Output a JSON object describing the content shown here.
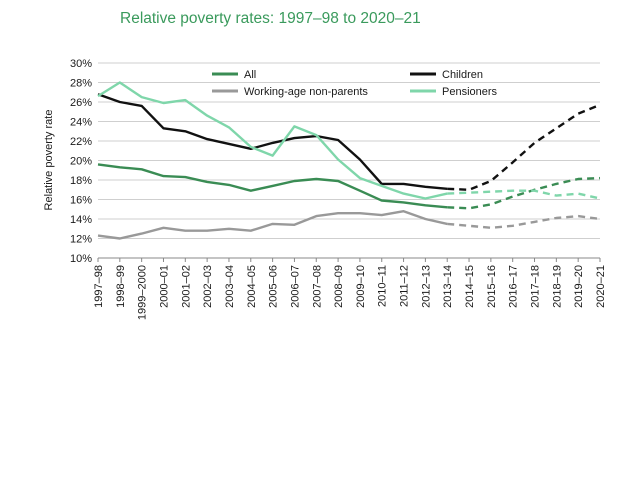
{
  "chart_data": {
    "type": "line",
    "title": "Relative poverty rates: 1997–98 to 2020–21",
    "xlabel": "",
    "ylabel": "Relative poverty rate",
    "ylim": [
      10,
      30
    ],
    "ytick_step": 2,
    "y_unit": "%",
    "grid": true,
    "legend_position": "top",
    "categories": [
      "1997–98",
      "1998–99",
      "1999–2000",
      "2000–01",
      "2001–02",
      "2002–03",
      "2003–04",
      "2004–05",
      "2005–06",
      "2006–07",
      "2007–08",
      "2008–09",
      "2009–10",
      "2010–11",
      "2011–12",
      "2012–13",
      "2013–14",
      "2014–15",
      "2015–16",
      "2016–17",
      "2017–18",
      "2018–19",
      "2019–20",
      "2020–21"
    ],
    "series": [
      {
        "name": "All",
        "color": "#3a8c54",
        "values": [
          19.6,
          19.3,
          19.1,
          18.4,
          18.3,
          17.8,
          17.5,
          16.9,
          17.4,
          17.9,
          18.1,
          17.9,
          16.9,
          15.9,
          15.7,
          15.4,
          15.2,
          15.1,
          15.5,
          16.3,
          17.0,
          17.6,
          18.1,
          18.2
        ],
        "projection_from_index": 16
      },
      {
        "name": "Children",
        "color": "#111111",
        "values": [
          26.8,
          26.0,
          25.6,
          23.3,
          23.0,
          22.2,
          21.7,
          21.2,
          21.8,
          22.3,
          22.5,
          22.1,
          20.1,
          17.6,
          17.6,
          17.3,
          17.1,
          17.0,
          17.9,
          19.8,
          21.8,
          23.3,
          24.8,
          25.7
        ],
        "projection_from_index": 16
      },
      {
        "name": "Working-age non-parents",
        "color": "#999999",
        "values": [
          12.3,
          12.0,
          12.5,
          13.1,
          12.8,
          12.8,
          13.0,
          12.8,
          13.5,
          13.4,
          14.3,
          14.6,
          14.6,
          14.4,
          14.8,
          14.0,
          13.5,
          13.3,
          13.1,
          13.3,
          13.7,
          14.1,
          14.3,
          14.0
        ],
        "projection_from_index": 16
      },
      {
        "name": "Pensioners",
        "color": "#7fd6aa",
        "values": [
          26.6,
          28.0,
          26.5,
          25.9,
          26.2,
          24.6,
          23.4,
          21.4,
          20.5,
          23.5,
          22.6,
          20.1,
          18.2,
          17.4,
          16.6,
          16.1,
          16.6,
          16.7,
          16.8,
          16.9,
          16.9,
          16.4,
          16.6,
          16.1
        ],
        "projection_from_index": 16
      }
    ]
  }
}
